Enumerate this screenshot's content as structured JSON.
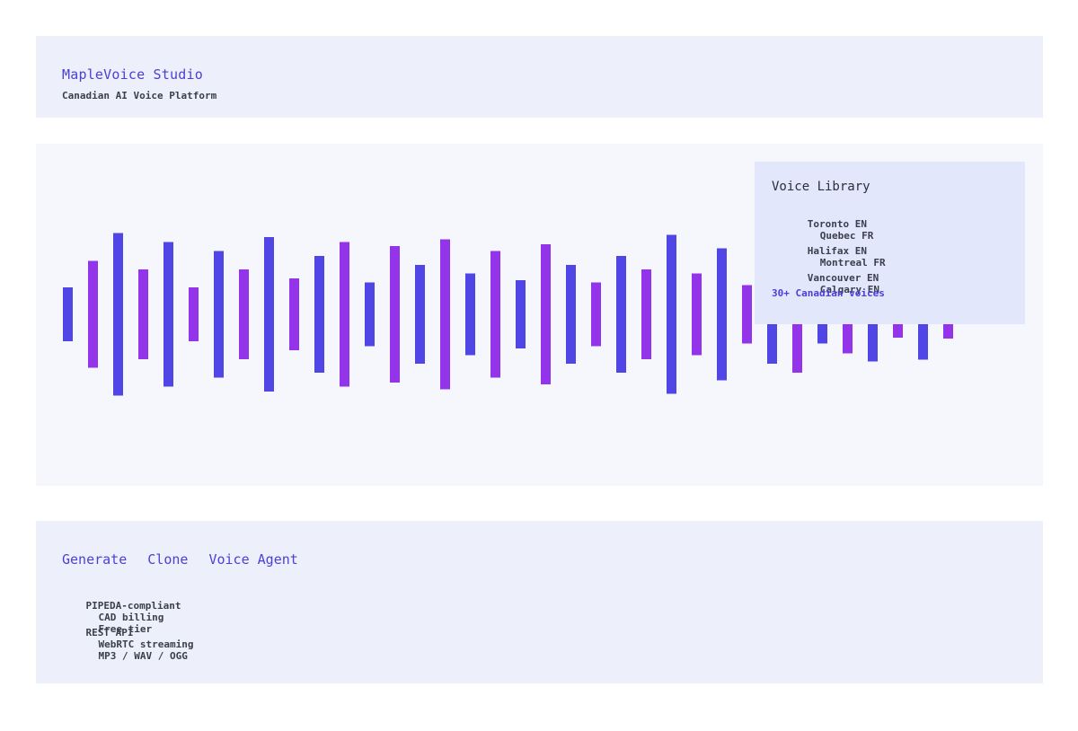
{
  "header": {
    "title": "MapleVoice Studio",
    "subtitle": "Canadian AI Voice Platform"
  },
  "waveform": {
    "colors": {
      "blue": "#4f46e5",
      "purple": "#9333ea"
    },
    "bars": [
      {
        "level": 0.33,
        "color": "blue"
      },
      {
        "level": 0.66,
        "color": "purple"
      },
      {
        "level": 1.0,
        "color": "blue"
      },
      {
        "level": 0.55,
        "color": "purple"
      },
      {
        "level": 0.89,
        "color": "blue"
      },
      {
        "level": 0.33,
        "color": "purple"
      },
      {
        "level": 0.78,
        "color": "blue"
      },
      {
        "level": 0.55,
        "color": "purple"
      },
      {
        "level": 0.95,
        "color": "blue"
      },
      {
        "level": 0.44,
        "color": "purple"
      },
      {
        "level": 0.72,
        "color": "blue"
      },
      {
        "level": 0.89,
        "color": "purple"
      },
      {
        "level": 0.39,
        "color": "blue"
      },
      {
        "level": 0.84,
        "color": "purple"
      },
      {
        "level": 0.61,
        "color": "blue"
      },
      {
        "level": 0.92,
        "color": "purple"
      },
      {
        "level": 0.5,
        "color": "blue"
      },
      {
        "level": 0.78,
        "color": "purple"
      },
      {
        "level": 0.42,
        "color": "blue"
      },
      {
        "level": 0.86,
        "color": "purple"
      },
      {
        "level": 0.61,
        "color": "blue"
      },
      {
        "level": 0.39,
        "color": "purple"
      },
      {
        "level": 0.72,
        "color": "blue"
      },
      {
        "level": 0.55,
        "color": "purple"
      },
      {
        "level": 0.98,
        "color": "blue"
      },
      {
        "level": 0.5,
        "color": "purple"
      },
      {
        "level": 0.81,
        "color": "blue"
      },
      {
        "level": 0.36,
        "color": "purple"
      },
      {
        "level": 0.61,
        "color": "blue"
      },
      {
        "level": 0.72,
        "color": "purple"
      },
      {
        "level": 0.36,
        "color": "blue"
      },
      {
        "level": 0.48,
        "color": "purple"
      },
      {
        "level": 0.58,
        "color": "blue"
      },
      {
        "level": 0.29,
        "color": "purple"
      },
      {
        "level": 0.56,
        "color": "blue"
      },
      {
        "level": 0.3,
        "color": "purple"
      }
    ]
  },
  "voice_library": {
    "title": "Voice Library",
    "rows": [
      [
        "Toronto EN",
        "Quebec FR"
      ],
      [
        "Halifax EN",
        "Montreal FR"
      ],
      [
        "Vancouver EN",
        "Calgary EN"
      ]
    ],
    "count_label": "30+ Canadian voices"
  },
  "footer": {
    "tabs": [
      "Generate",
      "Clone",
      "Voice Agent"
    ],
    "features_row1": [
      "PIPEDA-compliant",
      "CAD billing",
      "Free tier"
    ],
    "features_row2": [
      "REST API",
      "WebRTC streaming",
      "MP3 / WAV / OGG"
    ]
  }
}
